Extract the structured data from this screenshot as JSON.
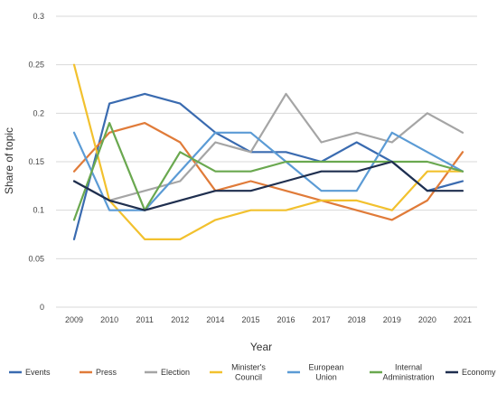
{
  "chart_data": {
    "type": "line",
    "x": [
      "2009",
      "2010",
      "2011",
      "2012",
      "2014",
      "2015",
      "2016",
      "2017",
      "2018",
      "2019",
      "2020",
      "2021"
    ],
    "xlabel": "Year",
    "ylabel": "Share of topic",
    "ylim": [
      0,
      0.3
    ],
    "yticks": [
      "0",
      "0.05",
      "0.1",
      "0.15",
      "0.2",
      "0.25",
      "0.3"
    ],
    "grid": true,
    "legend_position": "bottom",
    "series": [
      {
        "name": "Events",
        "color": "#3a6bb0",
        "values": [
          0.07,
          0.21,
          0.22,
          0.21,
          0.18,
          0.16,
          0.16,
          0.15,
          0.17,
          0.15,
          0.12,
          0.13
        ]
      },
      {
        "name": "Press",
        "color": "#e07b39",
        "values": [
          0.14,
          0.18,
          0.19,
          0.17,
          0.12,
          0.13,
          0.12,
          0.11,
          0.1,
          0.09,
          0.11,
          0.16
        ]
      },
      {
        "name": "Election",
        "color": "#a5a5a5",
        "values": [
          0.13,
          0.11,
          0.12,
          0.13,
          0.17,
          0.16,
          0.22,
          0.17,
          0.18,
          0.17,
          0.2,
          0.18
        ]
      },
      {
        "name": "Minister's Council",
        "color": "#f2c12e",
        "values": [
          0.25,
          0.11,
          0.07,
          0.07,
          0.09,
          0.1,
          0.1,
          0.11,
          0.11,
          0.1,
          0.14,
          0.14
        ]
      },
      {
        "name": "European Union",
        "color": "#5b9bd5",
        "values": [
          0.18,
          0.1,
          0.1,
          0.14,
          0.18,
          0.18,
          0.15,
          0.12,
          0.12,
          0.18,
          0.16,
          0.14
        ]
      },
      {
        "name": "Internal Administration",
        "color": "#6aa84f",
        "values": [
          0.09,
          0.19,
          0.1,
          0.16,
          0.14,
          0.14,
          0.15,
          0.15,
          0.15,
          0.15,
          0.15,
          0.14
        ]
      },
      {
        "name": "Economy",
        "color": "#1f2f4f",
        "values": [
          0.13,
          0.11,
          0.1,
          0.11,
          0.12,
          0.12,
          0.13,
          0.14,
          0.14,
          0.15,
          0.12,
          0.12
        ]
      }
    ],
    "legend_labels": [
      [
        "Events"
      ],
      [
        "Press"
      ],
      [
        "Election"
      ],
      [
        "Minister's",
        "Council"
      ],
      [
        "European",
        "Union"
      ],
      [
        "Internal",
        "Administration"
      ],
      [
        "Economy"
      ]
    ]
  }
}
